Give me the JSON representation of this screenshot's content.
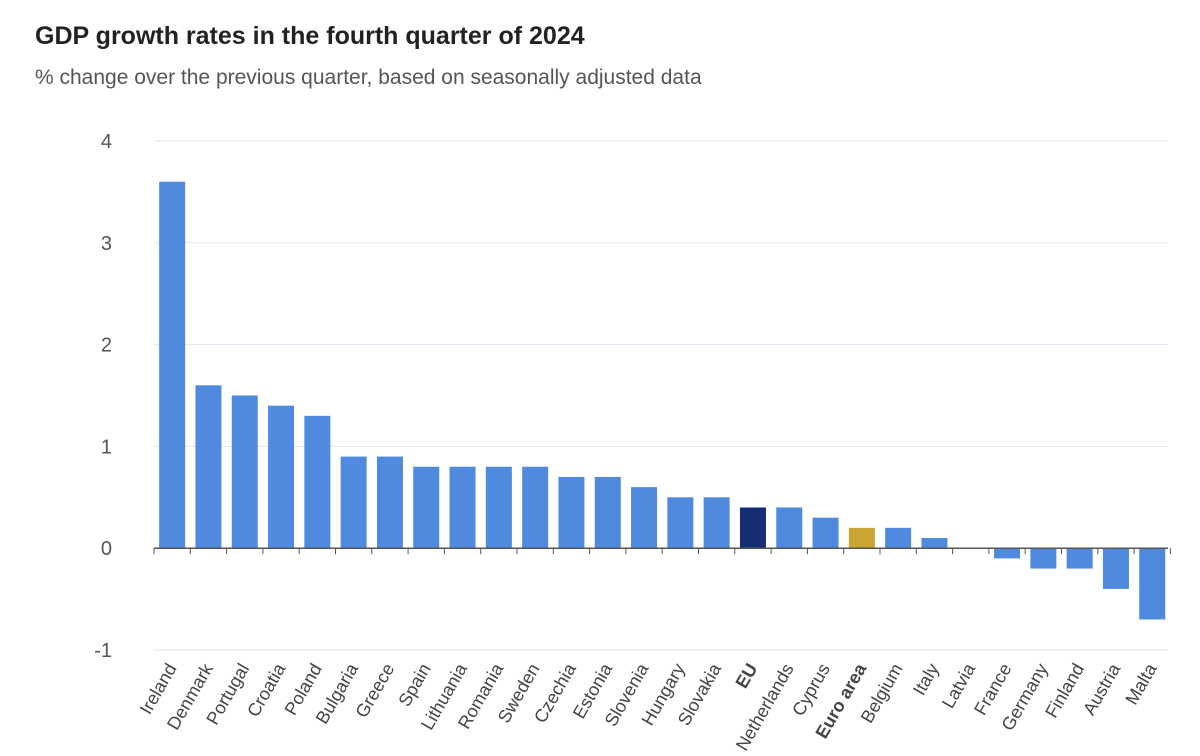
{
  "chart_data": {
    "type": "bar",
    "title": "GDP growth rates in the fourth quarter of 2024",
    "subtitle": "% change over the previous quarter, based on seasonally adjusted data",
    "xlabel": "",
    "ylabel": "",
    "ylim": [
      -1,
      4
    ],
    "yticks": [
      4,
      3,
      2,
      1,
      0,
      -1
    ],
    "grid": true,
    "categories": [
      "Ireland",
      "Denmark",
      "Portugal",
      "Croatia",
      "Poland",
      "Bulgaria",
      "Greece",
      "Spain",
      "Lithuania",
      "Romania",
      "Sweden",
      "Czechia",
      "Estonia",
      "Slovenia",
      "Hungary",
      "Slovakia",
      "EU",
      "Netherlands",
      "Cyprus",
      "Euro area",
      "Belgium",
      "Italy",
      "Latvia",
      "France",
      "Germany",
      "Finland",
      "Austria",
      "Malta"
    ],
    "values": [
      3.6,
      1.6,
      1.5,
      1.4,
      1.3,
      0.9,
      0.9,
      0.8,
      0.8,
      0.8,
      0.8,
      0.7,
      0.7,
      0.6,
      0.5,
      0.5,
      0.4,
      0.4,
      0.3,
      0.2,
      0.2,
      0.1,
      0.0,
      -0.1,
      -0.2,
      -0.2,
      -0.4,
      -0.7
    ],
    "bold_categories": [
      "EU",
      "Euro area"
    ],
    "colors": {
      "default": "#4f8ade",
      "highlight": {
        "EU": "#142d73",
        "Euro area": "#c9a634"
      },
      "grid": "#dde6f0",
      "axis": "#555555"
    }
  }
}
